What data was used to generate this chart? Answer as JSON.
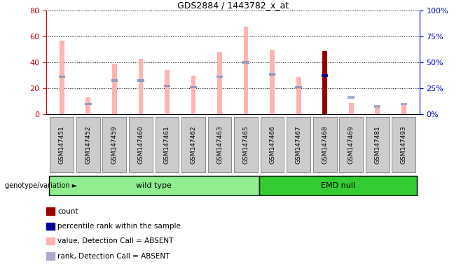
{
  "title": "GDS2884 / 1443782_x_at",
  "samples": [
    "GSM147451",
    "GSM147452",
    "GSM147459",
    "GSM147460",
    "GSM147461",
    "GSM147462",
    "GSM147463",
    "GSM147465",
    "GSM147466",
    "GSM147467",
    "GSM147468",
    "GSM147469",
    "GSM147481",
    "GSM147493"
  ],
  "pink_values": [
    57,
    13,
    39,
    43,
    34,
    30,
    48,
    68,
    50,
    29,
    0,
    9,
    5,
    9
  ],
  "blue_ranks": [
    29,
    8,
    26,
    26,
    22,
    21,
    29,
    40,
    31,
    21,
    0,
    0,
    0,
    0
  ],
  "dark_red_value": 49,
  "dark_red_idx": 10,
  "dark_blue_rank": 30,
  "dark_blue_idx": 10,
  "absent_pink_values": [
    0,
    0,
    0,
    0,
    0,
    0,
    0,
    0,
    0,
    0,
    0,
    9,
    5,
    9
  ],
  "absent_blue_ranks": [
    0,
    0,
    0,
    0,
    0,
    0,
    0,
    0,
    0,
    0,
    0,
    13,
    6,
    8
  ],
  "wild_type_count": 8,
  "emd_null_count": 6,
  "ylim_left": [
    0,
    80
  ],
  "ylim_right": [
    0,
    100
  ],
  "colors": {
    "pink_bar": "#FFB3B3",
    "blue_rank": "#9999BB",
    "dark_red": "#990000",
    "dark_blue": "#000099",
    "absent_pink": "#FFB3B3",
    "absent_blue": "#AAAACC",
    "wild_type_bg": "#90EE90",
    "emd_null_bg": "#33CC33",
    "axis_left": "#CC0000",
    "axis_right": "#0000CC",
    "tick_box_bg": "#CCCCCC",
    "tick_box_border": "#888888"
  },
  "legend": {
    "count": "count",
    "percentile": "percentile rank within the sample",
    "value_absent": "value, Detection Call = ABSENT",
    "rank_absent": "rank, Detection Call = ABSENT"
  },
  "bar_width": 0.18
}
